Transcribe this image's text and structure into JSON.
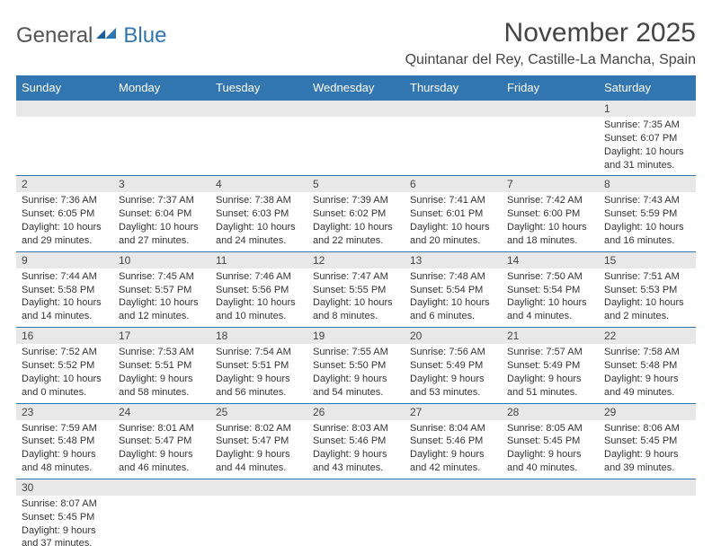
{
  "logo": {
    "general": "General",
    "blue": "Blue"
  },
  "title": "November 2025",
  "location": "Quintanar del Rey, Castille-La Mancha, Spain",
  "colors": {
    "header_bg": "#3276b1",
    "header_text": "#ffffff",
    "daynum_bg": "#e8e8e8",
    "border": "#3276b1",
    "text": "#333333",
    "title_text": "#444444"
  },
  "dayHeaders": [
    "Sunday",
    "Monday",
    "Tuesday",
    "Wednesday",
    "Thursday",
    "Friday",
    "Saturday"
  ],
  "weeks": [
    [
      null,
      null,
      null,
      null,
      null,
      null,
      {
        "n": "1",
        "sr": "Sunrise: 7:35 AM",
        "ss": "Sunset: 6:07 PM",
        "dl1": "Daylight: 10 hours",
        "dl2": "and 31 minutes."
      }
    ],
    [
      {
        "n": "2",
        "sr": "Sunrise: 7:36 AM",
        "ss": "Sunset: 6:05 PM",
        "dl1": "Daylight: 10 hours",
        "dl2": "and 29 minutes."
      },
      {
        "n": "3",
        "sr": "Sunrise: 7:37 AM",
        "ss": "Sunset: 6:04 PM",
        "dl1": "Daylight: 10 hours",
        "dl2": "and 27 minutes."
      },
      {
        "n": "4",
        "sr": "Sunrise: 7:38 AM",
        "ss": "Sunset: 6:03 PM",
        "dl1": "Daylight: 10 hours",
        "dl2": "and 24 minutes."
      },
      {
        "n": "5",
        "sr": "Sunrise: 7:39 AM",
        "ss": "Sunset: 6:02 PM",
        "dl1": "Daylight: 10 hours",
        "dl2": "and 22 minutes."
      },
      {
        "n": "6",
        "sr": "Sunrise: 7:41 AM",
        "ss": "Sunset: 6:01 PM",
        "dl1": "Daylight: 10 hours",
        "dl2": "and 20 minutes."
      },
      {
        "n": "7",
        "sr": "Sunrise: 7:42 AM",
        "ss": "Sunset: 6:00 PM",
        "dl1": "Daylight: 10 hours",
        "dl2": "and 18 minutes."
      },
      {
        "n": "8",
        "sr": "Sunrise: 7:43 AM",
        "ss": "Sunset: 5:59 PM",
        "dl1": "Daylight: 10 hours",
        "dl2": "and 16 minutes."
      }
    ],
    [
      {
        "n": "9",
        "sr": "Sunrise: 7:44 AM",
        "ss": "Sunset: 5:58 PM",
        "dl1": "Daylight: 10 hours",
        "dl2": "and 14 minutes."
      },
      {
        "n": "10",
        "sr": "Sunrise: 7:45 AM",
        "ss": "Sunset: 5:57 PM",
        "dl1": "Daylight: 10 hours",
        "dl2": "and 12 minutes."
      },
      {
        "n": "11",
        "sr": "Sunrise: 7:46 AM",
        "ss": "Sunset: 5:56 PM",
        "dl1": "Daylight: 10 hours",
        "dl2": "and 10 minutes."
      },
      {
        "n": "12",
        "sr": "Sunrise: 7:47 AM",
        "ss": "Sunset: 5:55 PM",
        "dl1": "Daylight: 10 hours",
        "dl2": "and 8 minutes."
      },
      {
        "n": "13",
        "sr": "Sunrise: 7:48 AM",
        "ss": "Sunset: 5:54 PM",
        "dl1": "Daylight: 10 hours",
        "dl2": "and 6 minutes."
      },
      {
        "n": "14",
        "sr": "Sunrise: 7:50 AM",
        "ss": "Sunset: 5:54 PM",
        "dl1": "Daylight: 10 hours",
        "dl2": "and 4 minutes."
      },
      {
        "n": "15",
        "sr": "Sunrise: 7:51 AM",
        "ss": "Sunset: 5:53 PM",
        "dl1": "Daylight: 10 hours",
        "dl2": "and 2 minutes."
      }
    ],
    [
      {
        "n": "16",
        "sr": "Sunrise: 7:52 AM",
        "ss": "Sunset: 5:52 PM",
        "dl1": "Daylight: 10 hours",
        "dl2": "and 0 minutes."
      },
      {
        "n": "17",
        "sr": "Sunrise: 7:53 AM",
        "ss": "Sunset: 5:51 PM",
        "dl1": "Daylight: 9 hours",
        "dl2": "and 58 minutes."
      },
      {
        "n": "18",
        "sr": "Sunrise: 7:54 AM",
        "ss": "Sunset: 5:51 PM",
        "dl1": "Daylight: 9 hours",
        "dl2": "and 56 minutes."
      },
      {
        "n": "19",
        "sr": "Sunrise: 7:55 AM",
        "ss": "Sunset: 5:50 PM",
        "dl1": "Daylight: 9 hours",
        "dl2": "and 54 minutes."
      },
      {
        "n": "20",
        "sr": "Sunrise: 7:56 AM",
        "ss": "Sunset: 5:49 PM",
        "dl1": "Daylight: 9 hours",
        "dl2": "and 53 minutes."
      },
      {
        "n": "21",
        "sr": "Sunrise: 7:57 AM",
        "ss": "Sunset: 5:49 PM",
        "dl1": "Daylight: 9 hours",
        "dl2": "and 51 minutes."
      },
      {
        "n": "22",
        "sr": "Sunrise: 7:58 AM",
        "ss": "Sunset: 5:48 PM",
        "dl1": "Daylight: 9 hours",
        "dl2": "and 49 minutes."
      }
    ],
    [
      {
        "n": "23",
        "sr": "Sunrise: 7:59 AM",
        "ss": "Sunset: 5:48 PM",
        "dl1": "Daylight: 9 hours",
        "dl2": "and 48 minutes."
      },
      {
        "n": "24",
        "sr": "Sunrise: 8:01 AM",
        "ss": "Sunset: 5:47 PM",
        "dl1": "Daylight: 9 hours",
        "dl2": "and 46 minutes."
      },
      {
        "n": "25",
        "sr": "Sunrise: 8:02 AM",
        "ss": "Sunset: 5:47 PM",
        "dl1": "Daylight: 9 hours",
        "dl2": "and 44 minutes."
      },
      {
        "n": "26",
        "sr": "Sunrise: 8:03 AM",
        "ss": "Sunset: 5:46 PM",
        "dl1": "Daylight: 9 hours",
        "dl2": "and 43 minutes."
      },
      {
        "n": "27",
        "sr": "Sunrise: 8:04 AM",
        "ss": "Sunset: 5:46 PM",
        "dl1": "Daylight: 9 hours",
        "dl2": "and 42 minutes."
      },
      {
        "n": "28",
        "sr": "Sunrise: 8:05 AM",
        "ss": "Sunset: 5:45 PM",
        "dl1": "Daylight: 9 hours",
        "dl2": "and 40 minutes."
      },
      {
        "n": "29",
        "sr": "Sunrise: 8:06 AM",
        "ss": "Sunset: 5:45 PM",
        "dl1": "Daylight: 9 hours",
        "dl2": "and 39 minutes."
      }
    ],
    [
      {
        "n": "30",
        "sr": "Sunrise: 8:07 AM",
        "ss": "Sunset: 5:45 PM",
        "dl1": "Daylight: 9 hours",
        "dl2": "and 37 minutes."
      },
      null,
      null,
      null,
      null,
      null,
      null
    ]
  ]
}
